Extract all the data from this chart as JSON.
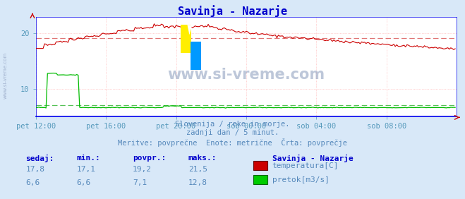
{
  "title": "Savinja - Nazarje",
  "title_color": "#0000cc",
  "bg_color": "#d8e8f8",
  "plot_bg_color": "#ffffff",
  "grid_color": "#ffaaaa",
  "grid_color_y": "#ffaaaa",
  "xlabel_color": "#5599bb",
  "text_color": "#5588bb",
  "watermark": "www.si-vreme.com",
  "x_labels": [
    "pet 12:00",
    "pet 16:00",
    "pet 20:00",
    "sob 00:00",
    "sob 04:00",
    "sob 08:00"
  ],
  "x_ticks": [
    0,
    48,
    96,
    144,
    192,
    240
  ],
  "x_max": 288,
  "temp_avg": 19.2,
  "flow_avg": 7.1,
  "y_min": 5,
  "y_max": 23,
  "y_ticks": [
    10,
    20
  ],
  "temp_color": "#cc0000",
  "flow_color": "#00bb00",
  "avg_line_color": "#dd6666",
  "flow_avg_color": "#44bb44",
  "axis_color": "#0000ee",
  "subtitle1": "Slovenija / reke in morje.",
  "subtitle2": "zadnji dan / 5 minut.",
  "subtitle3": "Meritve: povprečne  Enote: metrične  Črta: povprečje",
  "legend_title": "Savinja - Nazarje",
  "legend1": "temperatura[C]",
  "legend2": "pretok[m3/s]",
  "table_headers": [
    "sedaj:",
    "min.:",
    "povpr.:",
    "maks.:"
  ],
  "table_row1": [
    "17,8",
    "17,1",
    "19,2",
    "21,5"
  ],
  "table_row2": [
    "6,6",
    "6,6",
    "7,1",
    "12,8"
  ],
  "side_text": "www.si-vreme.com"
}
